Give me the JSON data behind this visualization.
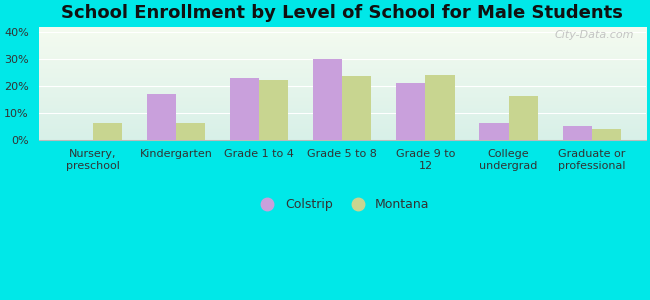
{
  "title": "School Enrollment by Level of School for Male Students",
  "categories": [
    "Nursery,\npreschool",
    "Kindergarten",
    "Grade 1 to 4",
    "Grade 5 to 8",
    "Grade 9 to\n12",
    "College\nundergrad",
    "Graduate or\nprofessional"
  ],
  "colstrip": [
    0,
    17,
    23,
    30,
    21,
    6,
    5
  ],
  "montana": [
    6,
    6,
    22,
    23.5,
    24,
    16,
    4
  ],
  "colstrip_color": "#c9a0dc",
  "montana_color": "#c8d590",
  "background_color": "#00e8e8",
  "grad_top": "#f5fbf0",
  "grad_bottom": "#d8f0e8",
  "ylim": [
    0,
    42
  ],
  "yticks": [
    0,
    10,
    20,
    30,
    40
  ],
  "ytick_labels": [
    "0%",
    "10%",
    "20%",
    "30%",
    "40%"
  ],
  "bar_width": 0.35,
  "legend_labels": [
    "Colstrip",
    "Montana"
  ],
  "watermark": "City-Data.com",
  "title_fontsize": 13,
  "tick_fontsize": 8,
  "legend_fontsize": 9,
  "grid_color": "#ffffff",
  "spine_color": "#bbbbbb",
  "text_color": "#333333"
}
